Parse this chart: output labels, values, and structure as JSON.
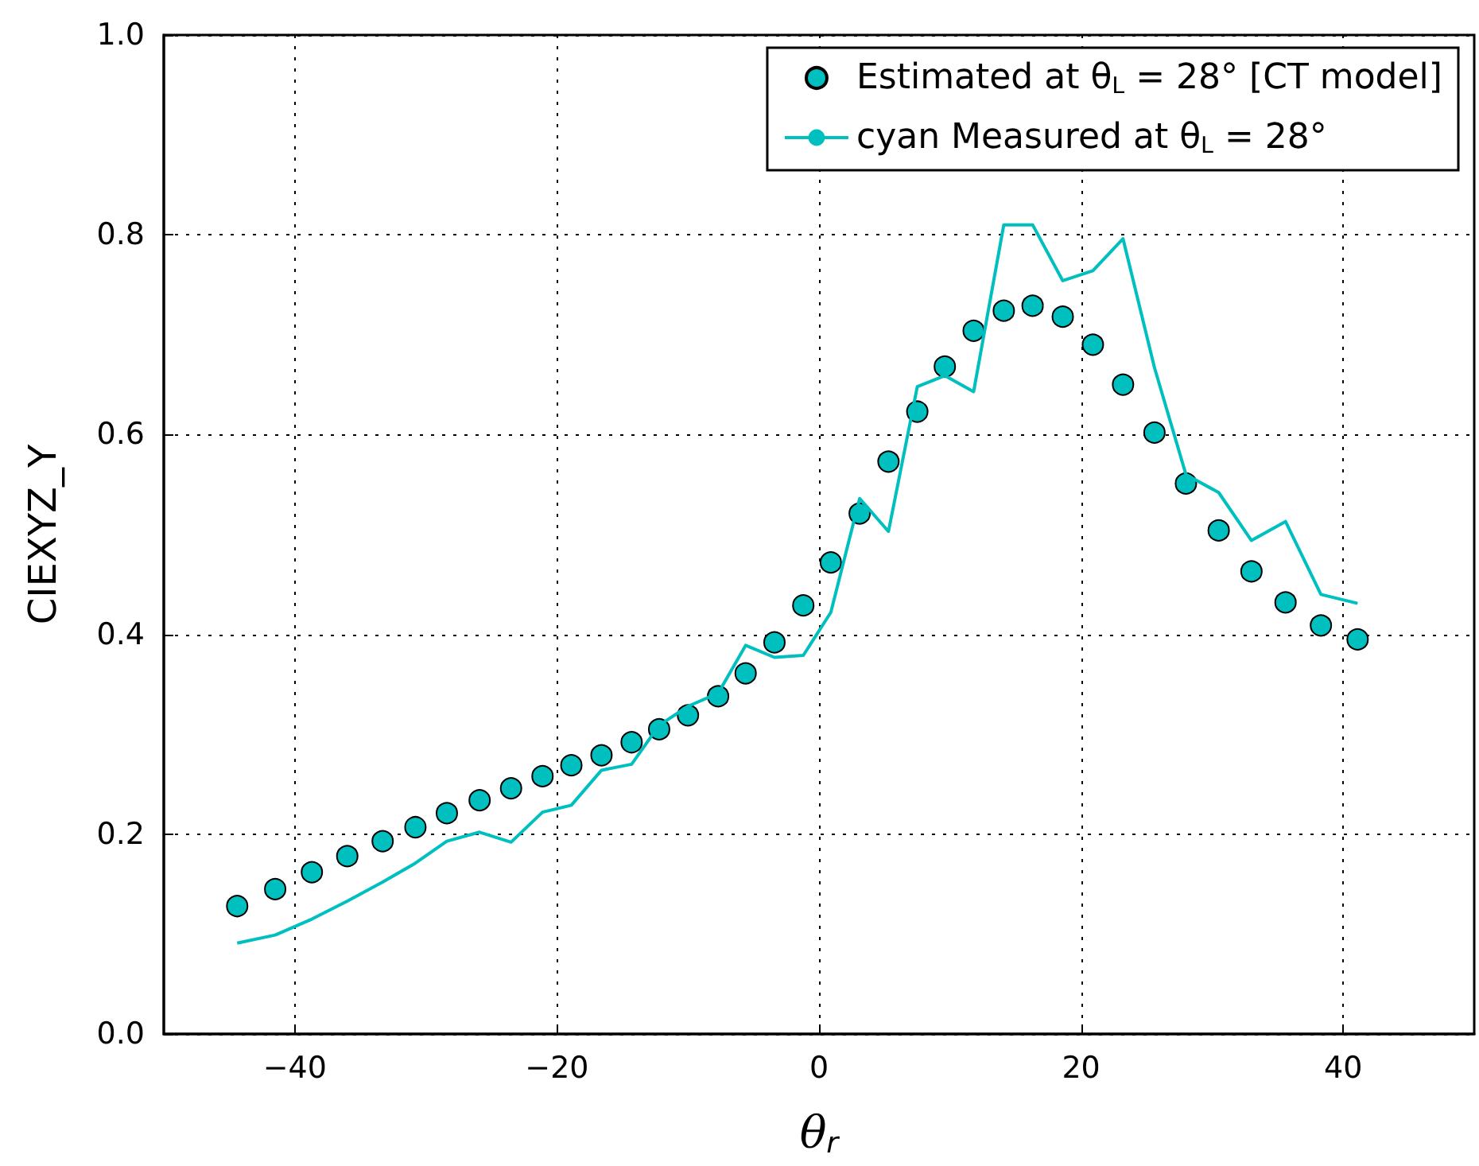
{
  "chart_data": {
    "type": "scatter",
    "xlabel": "θ$_{r}$",
    "ylabel": "CIEXYZ_Y",
    "x": [
      -44.4,
      -41.5,
      -38.7,
      -36.0,
      -33.3,
      -30.8,
      -28.4,
      -25.9,
      -23.5,
      -21.1,
      -18.9,
      -16.6,
      -14.3,
      -12.2,
      -10.0,
      -7.7,
      -5.6,
      -3.4,
      -1.2,
      0.9,
      3.1,
      5.3,
      7.5,
      9.6,
      11.8,
      14.1,
      16.3,
      18.6,
      20.9,
      23.2,
      25.6,
      28.0,
      30.5,
      33.0,
      35.6,
      38.3,
      41.1
    ],
    "series": [
      {
        "name": "Estimated at θ$_{L}$ = 28° [CT model]",
        "marker": "circle",
        "color": "#00bfbf",
        "values": [
          0.128,
          0.145,
          0.162,
          0.178,
          0.193,
          0.207,
          0.221,
          0.234,
          0.246,
          0.258,
          0.269,
          0.279,
          0.292,
          0.305,
          0.319,
          0.338,
          0.361,
          0.392,
          0.429,
          0.472,
          0.521,
          0.573,
          0.623,
          0.668,
          0.704,
          0.724,
          0.729,
          0.718,
          0.69,
          0.65,
          0.602,
          0.551,
          0.504,
          0.463,
          0.432,
          0.409,
          0.395
        ]
      },
      {
        "name": "cyan Measured at θ$_{L}$ = 28°",
        "type": "line",
        "marker": "none",
        "line_style": "solid",
        "color": "#00bfbf",
        "values": [
          0.091,
          0.099,
          0.115,
          0.133,
          0.152,
          0.171,
          0.193,
          0.202,
          0.192,
          0.222,
          0.229,
          0.264,
          0.27,
          0.309,
          0.328,
          0.341,
          0.389,
          0.377,
          0.379,
          0.422,
          0.536,
          0.503,
          0.648,
          0.659,
          0.643,
          0.81,
          0.81,
          0.754,
          0.764,
          0.796,
          0.667,
          0.56,
          0.542,
          0.494,
          0.513,
          0.44,
          0.431
        ]
      }
    ],
    "xlim": [
      -50,
      50
    ],
    "xticks": [
      -40,
      -20,
      0,
      20,
      40
    ],
    "ylim": [
      0,
      1
    ],
    "yticks": [
      {
        "value": 0,
        "label": "0.0"
      },
      0.2,
      0.4,
      0.6,
      0.8,
      {
        "value": 1,
        "label": "1.0"
      }
    ],
    "grid": true,
    "legend": "top right"
  }
}
